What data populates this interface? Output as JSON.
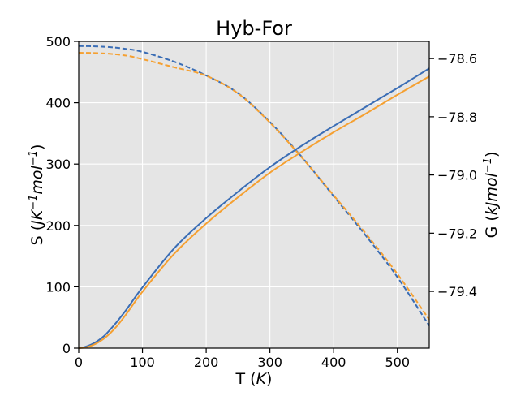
{
  "chart_data": {
    "type": "line",
    "title": "Hyb-For",
    "xlabel": {
      "prefix": "T (",
      "italic": "K",
      "suffix": ")"
    },
    "ylabel_left": {
      "prefix": "S (",
      "italic": "JK",
      "sup1": "−1",
      "italic2": "mol",
      "sup2": "−1",
      "suffix": ")"
    },
    "ylabel_right": {
      "prefix": "G (",
      "italic": "kJmol",
      "sup": "−1",
      "suffix": ")"
    },
    "xlim": [
      0,
      550
    ],
    "ylim_left": [
      0,
      500
    ],
    "ylim_right": [
      -79.595,
      -78.541
    ],
    "x_ticks": [
      0,
      100,
      200,
      300,
      400,
      500
    ],
    "x_tick_labels": [
      "0",
      "100",
      "200",
      "300",
      "400",
      "500"
    ],
    "y_left_ticks": [
      0,
      100,
      200,
      300,
      400,
      500
    ],
    "y_left_tick_labels": [
      "0",
      "100",
      "200",
      "300",
      "400",
      "500"
    ],
    "y_right_ticks": [
      -79.4,
      -79.2,
      -79.0,
      -78.8,
      -78.6
    ],
    "y_right_tick_labels": [
      "−79.4",
      "−79.2",
      "−79.0",
      "−78.8",
      "−78.6"
    ],
    "grid": true,
    "background": "#e5e5e5",
    "series": [
      {
        "axis": "left",
        "style": "solid",
        "color": "#3a6db5",
        "x": [
          0,
          10,
          20,
          30,
          40,
          50,
          60,
          75,
          100,
          150,
          200,
          250,
          300,
          350,
          400,
          450,
          500,
          550
        ],
        "y": [
          0,
          2,
          6,
          12,
          20,
          31,
          43,
          63,
          99,
          163,
          212,
          255,
          295,
          330,
          362,
          393,
          424,
          456
        ]
      },
      {
        "axis": "left",
        "style": "solid",
        "color": "#f5a031",
        "x": [
          0,
          10,
          20,
          30,
          40,
          50,
          60,
          75,
          100,
          150,
          200,
          250,
          300,
          350,
          400,
          450,
          500,
          550
        ],
        "y": [
          0,
          1,
          4,
          9,
          16,
          25,
          36,
          56,
          92,
          154,
          203,
          246,
          286,
          320,
          352,
          382,
          413,
          443
        ]
      },
      {
        "axis": "right",
        "style": "dashed",
        "color": "#3a6db5",
        "x": [
          0,
          25,
          50,
          75,
          100,
          150,
          200,
          250,
          300,
          350,
          400,
          450,
          500,
          550
        ],
        "y": [
          -78.557,
          -78.558,
          -78.561,
          -78.567,
          -78.577,
          -78.611,
          -78.658,
          -78.719,
          -78.818,
          -78.938,
          -79.073,
          -79.207,
          -79.351,
          -79.518
        ]
      },
      {
        "axis": "right",
        "style": "dashed",
        "color": "#f5a031",
        "x": [
          0,
          25,
          50,
          75,
          100,
          150,
          200,
          250,
          300,
          350,
          400,
          450,
          500,
          550
        ],
        "y": [
          -78.58,
          -78.581,
          -78.584,
          -78.59,
          -78.602,
          -78.63,
          -78.659,
          -78.72,
          -78.82,
          -78.94,
          -79.07,
          -79.2,
          -79.34,
          -79.497
        ]
      }
    ]
  }
}
